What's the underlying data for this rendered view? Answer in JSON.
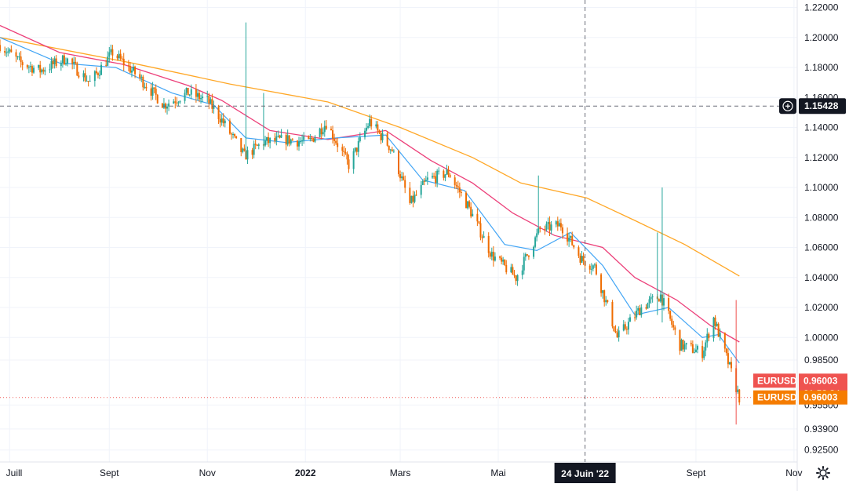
{
  "chart_data": {
    "type": "candlestick",
    "symbol": "EURUSD",
    "y_ticks": [
      "1.22000",
      "1.20000",
      "1.18000",
      "1.16000",
      "1.14000",
      "1.12000",
      "1.10000",
      "1.08000",
      "1.06000",
      "1.04000",
      "1.02000",
      "1.00000",
      "0.98500",
      "0.95500",
      "0.93900",
      "0.92500"
    ],
    "y_tick_values": [
      1.22,
      1.2,
      1.18,
      1.16,
      1.14,
      1.12,
      1.1,
      1.08,
      1.06,
      1.04,
      1.02,
      1.0,
      0.985,
      0.955,
      0.939,
      0.925
    ],
    "x_ticks": [
      "Juill",
      "Sept",
      "Nov",
      "2022",
      "Mars",
      "Mai",
      "Sept",
      "Nov"
    ],
    "x_tick_dates": [
      "2021-07-01",
      "2021-09-01",
      "2021-11-01",
      "2022-01-01",
      "2022-03-01",
      "2022-05-01",
      "2022-09-01",
      "2022-11-01"
    ],
    "x_bold_ticks": [
      "2022"
    ],
    "x_range": [
      "2021-06-25",
      "2022-11-03"
    ],
    "y_range": [
      0.917,
      1.225
    ],
    "crosshair": {
      "date_label": "24 Juin '22",
      "date": "2022-06-24",
      "price_label": "1.15428",
      "price": 1.15428
    },
    "last_price": {
      "label": "EURUSD",
      "value": "0.96003",
      "value_num": 0.96003,
      "countdown": "01:53:34"
    },
    "bid_price": {
      "label": "EURUSD",
      "value": "0.96003"
    },
    "colors": {
      "up": "#26a69a",
      "down": "#ef6c00",
      "ma_fast": "#42a5f5",
      "ma_mid": "#ec407a",
      "ma_slow": "#ffa726",
      "last_pill": "#ef5350",
      "bid_pill": "#f57c00",
      "crosshair_pill": "#131722"
    },
    "price_path": [
      [
        "2021-06-25",
        1.195
      ],
      [
        "2021-07-08",
        1.183
      ],
      [
        "2021-07-20",
        1.178
      ],
      [
        "2021-08-05",
        1.186
      ],
      [
        "2021-08-20",
        1.17
      ],
      [
        "2021-09-03",
        1.19
      ],
      [
        "2021-09-20",
        1.173
      ],
      [
        "2021-10-05",
        1.155
      ],
      [
        "2021-10-20",
        1.163
      ],
      [
        "2021-11-01",
        1.158
      ],
      [
        "2021-11-10",
        1.145
      ],
      [
        "2021-11-24",
        1.121
      ],
      [
        "2021-12-06",
        1.13
      ],
      [
        "2021-12-20",
        1.132
      ],
      [
        "2022-01-03",
        1.13
      ],
      [
        "2022-01-14",
        1.143
      ],
      [
        "2022-01-28",
        1.115
      ],
      [
        "2022-02-10",
        1.144
      ],
      [
        "2022-02-24",
        1.125
      ],
      [
        "2022-03-07",
        1.089
      ],
      [
        "2022-03-18",
        1.105
      ],
      [
        "2022-03-31",
        1.11
      ],
      [
        "2022-04-12",
        1.088
      ],
      [
        "2022-04-27",
        1.055
      ],
      [
        "2022-05-12",
        1.04
      ],
      [
        "2022-05-27",
        1.072
      ],
      [
        "2022-06-09",
        1.075
      ],
      [
        "2022-06-22",
        1.052
      ],
      [
        "2022-06-30",
        1.047
      ],
      [
        "2022-07-14",
        1.0
      ],
      [
        "2022-07-29",
        1.02
      ],
      [
        "2022-08-10",
        1.028
      ],
      [
        "2022-08-22",
        0.995
      ],
      [
        "2022-09-05",
        0.99
      ],
      [
        "2022-09-12",
        1.013
      ],
      [
        "2022-09-22",
        0.98
      ],
      [
        "2022-09-28",
        0.96
      ]
    ],
    "ma_fast_path": [
      [
        "2021-06-25",
        1.2
      ],
      [
        "2021-08-01",
        1.183
      ],
      [
        "2021-09-05",
        1.18
      ],
      [
        "2021-10-10",
        1.163
      ],
      [
        "2021-11-05",
        1.155
      ],
      [
        "2021-11-25",
        1.133
      ],
      [
        "2021-12-20",
        1.13
      ],
      [
        "2022-01-20",
        1.133
      ],
      [
        "2022-02-20",
        1.135
      ],
      [
        "2022-03-15",
        1.105
      ],
      [
        "2022-04-10",
        1.098
      ],
      [
        "2022-05-05",
        1.062
      ],
      [
        "2022-05-25",
        1.058
      ],
      [
        "2022-06-15",
        1.07
      ],
      [
        "2022-07-05",
        1.048
      ],
      [
        "2022-07-25",
        1.015
      ],
      [
        "2022-08-15",
        1.02
      ],
      [
        "2022-09-05",
        1.0
      ],
      [
        "2022-09-15",
        1.002
      ],
      [
        "2022-09-28",
        0.983
      ]
    ],
    "ma_mid_path": [
      [
        "2021-06-25",
        1.208
      ],
      [
        "2021-08-01",
        1.19
      ],
      [
        "2021-09-10",
        1.182
      ],
      [
        "2021-10-20",
        1.168
      ],
      [
        "2021-11-10",
        1.158
      ],
      [
        "2021-12-10",
        1.138
      ],
      [
        "2022-01-15",
        1.132
      ],
      [
        "2022-02-20",
        1.138
      ],
      [
        "2022-03-20",
        1.118
      ],
      [
        "2022-04-15",
        1.103
      ],
      [
        "2022-05-10",
        1.083
      ],
      [
        "2022-06-05",
        1.068
      ],
      [
        "2022-07-05",
        1.06
      ],
      [
        "2022-07-25",
        1.04
      ],
      [
        "2022-08-20",
        1.025
      ],
      [
        "2022-09-10",
        1.008
      ],
      [
        "2022-09-28",
        0.997
      ]
    ],
    "ma_slow_path": [
      [
        "2021-06-25",
        1.2
      ],
      [
        "2021-09-15",
        1.183
      ],
      [
        "2021-11-15",
        1.169
      ],
      [
        "2022-01-15",
        1.157
      ],
      [
        "2022-03-01",
        1.14
      ],
      [
        "2022-04-15",
        1.12
      ],
      [
        "2022-05-15",
        1.103
      ],
      [
        "2022-06-25",
        1.093
      ],
      [
        "2022-07-25",
        1.078
      ],
      [
        "2022-08-25",
        1.062
      ],
      [
        "2022-09-28",
        1.041
      ]
    ],
    "spikes": [
      [
        "2021-11-25",
        1.21,
        1.12,
        1.135
      ],
      [
        "2021-12-06",
        1.163,
        1.125,
        1.132
      ],
      [
        "2022-05-26",
        1.108,
        1.07,
        1.072
      ],
      [
        "2022-08-11",
        1.1,
        1.01,
        1.025
      ],
      [
        "2022-08-08",
        1.07,
        1.015,
        1.028
      ],
      [
        "2022-09-26",
        1.025,
        0.942,
        0.962
      ]
    ]
  }
}
